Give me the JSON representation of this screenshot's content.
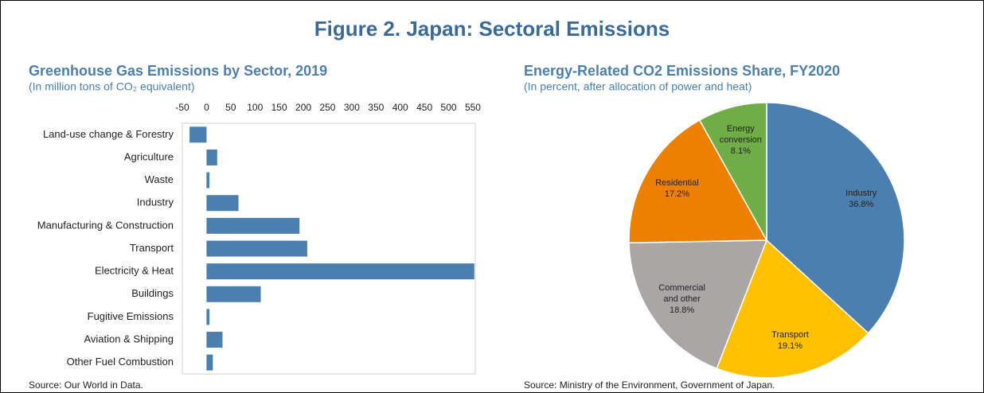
{
  "figure_title": "Figure 2. Japan: Sectoral Emissions",
  "chart_data": [
    {
      "type": "hbar",
      "title": "Greenhouse Gas Emissions by Sector, 2019",
      "subtitle": "(In million tons of CO₂ equivalent)",
      "source": "Source: Our World in Data.",
      "categories": [
        "Land-use change & Forestry",
        "Agriculture",
        "Waste",
        "Industry",
        "Manufacturing & Construction",
        "Transport",
        "Electricity & Heat",
        "Buildings",
        "Fugitive Emissions",
        "Aviation & Shipping",
        "Other Fuel Combustion"
      ],
      "values": [
        -35,
        22,
        6,
        66,
        192,
        208,
        553,
        112,
        6,
        33,
        13
      ],
      "color": "#4a7fb0",
      "xlim": [
        -50,
        555
      ],
      "xticks": [
        -50,
        0,
        50,
        100,
        150,
        200,
        250,
        300,
        350,
        400,
        450,
        500,
        550
      ]
    },
    {
      "type": "pie",
      "title": "Energy-Related CO2 Emissions Share, FY2020",
      "subtitle": "(In percent, after allocation of power and heat)",
      "source": "Source: Ministry of the Environment, Government of Japan.",
      "categories": [
        "Industry",
        "Transport",
        "Commercial and other",
        "Residential",
        "Energy conversion"
      ],
      "values": [
        36.8,
        19.1,
        18.8,
        17.2,
        8.1
      ],
      "value_labels": [
        "36.8%",
        "19.1%",
        "18.8%",
        "17.2%",
        "8.1%"
      ],
      "colors": [
        "#4a7fb0",
        "#ffc000",
        "#aaa6a6",
        "#ed8000",
        "#70ad47"
      ]
    }
  ]
}
